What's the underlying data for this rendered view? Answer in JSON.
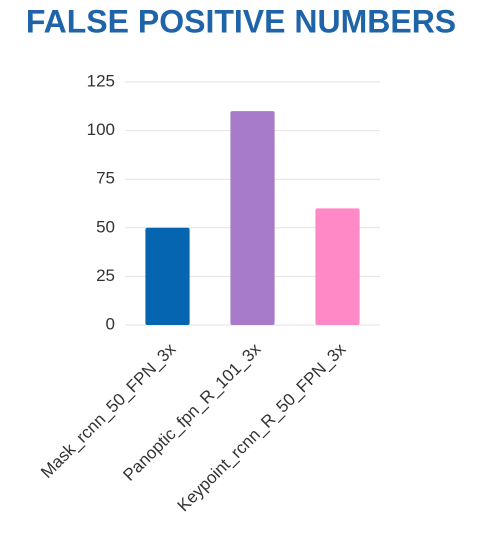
{
  "chart_data": {
    "type": "bar",
    "title": "FALSE POSITIVE NUMBERS",
    "categories": [
      "Mask_rcnn_50_FPN_3x",
      "Panoptic_fpn_R_101_3x",
      "Keypoint_rcnn_R_50_FPN_3x"
    ],
    "values": [
      50,
      110,
      60
    ],
    "colors": [
      "#0565b0",
      "#a77bca",
      "#ff89c7"
    ],
    "ylim": [
      0,
      125
    ],
    "yticks": [
      0,
      25,
      50,
      75,
      100,
      125
    ],
    "grid": true
  }
}
